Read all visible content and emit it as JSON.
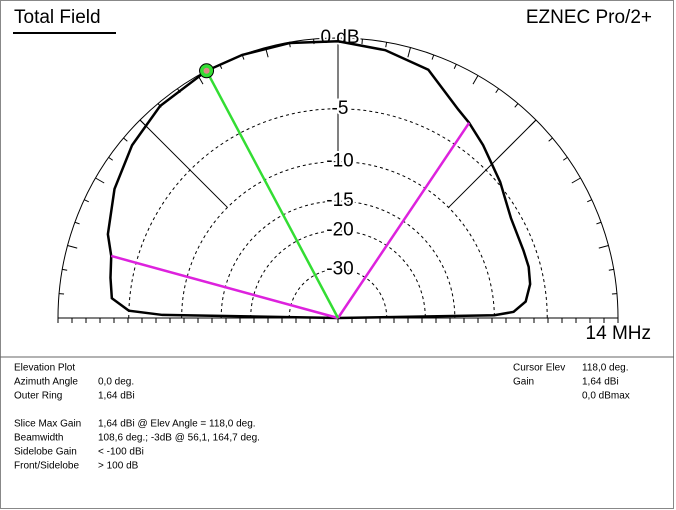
{
  "chart_data": {
    "type": "polar-elevation",
    "title": "Total Field",
    "brand": "EZNEC Pro/2+",
    "frequency": "14 MHz",
    "scale": "arrl-log",
    "xlim": [
      0,
      180
    ],
    "yticks": [
      {
        "value": 0,
        "label": "0 dB"
      },
      -5,
      -10,
      -15,
      -20,
      -30
    ],
    "x": [
      1,
      2,
      5,
      10,
      15,
      20,
      30,
      40,
      50,
      56.1,
      60,
      70,
      80,
      90,
      100,
      110,
      118,
      130,
      140,
      150,
      160,
      164.7,
      170,
      175,
      178,
      179
    ],
    "series": [
      {
        "color": "#000000",
        "values": [
          -10,
          -8,
          -6.8,
          -6.2,
          -6.0,
          -6.0,
          -5.8,
          -4.8,
          -3.7,
          -3.0,
          -2.6,
          -1.0,
          -0.5,
          -0.2,
          -0.05,
          0,
          0,
          -0.2,
          -0.7,
          -1.4,
          -2.3,
          -3.0,
          -3.3,
          -3.6,
          -5,
          -8
        ]
      }
    ],
    "cursor_angle": 118,
    "cursor_color": "#33dd33",
    "half_power_angles": [
      56.1,
      164.7
    ],
    "half_power_color": "#dd22dd"
  },
  "info": {
    "left": [
      {
        "label": "Elevation Plot"
      },
      {
        "label": "Azimuth Angle",
        "value": "0,0 deg."
      },
      {
        "label": "Outer Ring",
        "value": "1,64 dBi"
      },
      {
        "label": "Slice Max Gain",
        "value": "1,64 dBi @ Elev Angle = 118,0 deg."
      },
      {
        "label": "Beamwidth",
        "value": "108,6 deg.; -3dB @ 56,1, 164,7 deg."
      },
      {
        "label": "Sidelobe Gain",
        "value": "< -100 dBi"
      },
      {
        "label": "Front/Sidelobe",
        "value": "> 100 dB"
      }
    ],
    "right": [
      {
        "label": "Cursor Elev",
        "value": "118,0 deg."
      },
      {
        "label": "Gain",
        "value": "1,64 dBi"
      },
      {
        "value": "0,0 dBmax"
      }
    ]
  }
}
